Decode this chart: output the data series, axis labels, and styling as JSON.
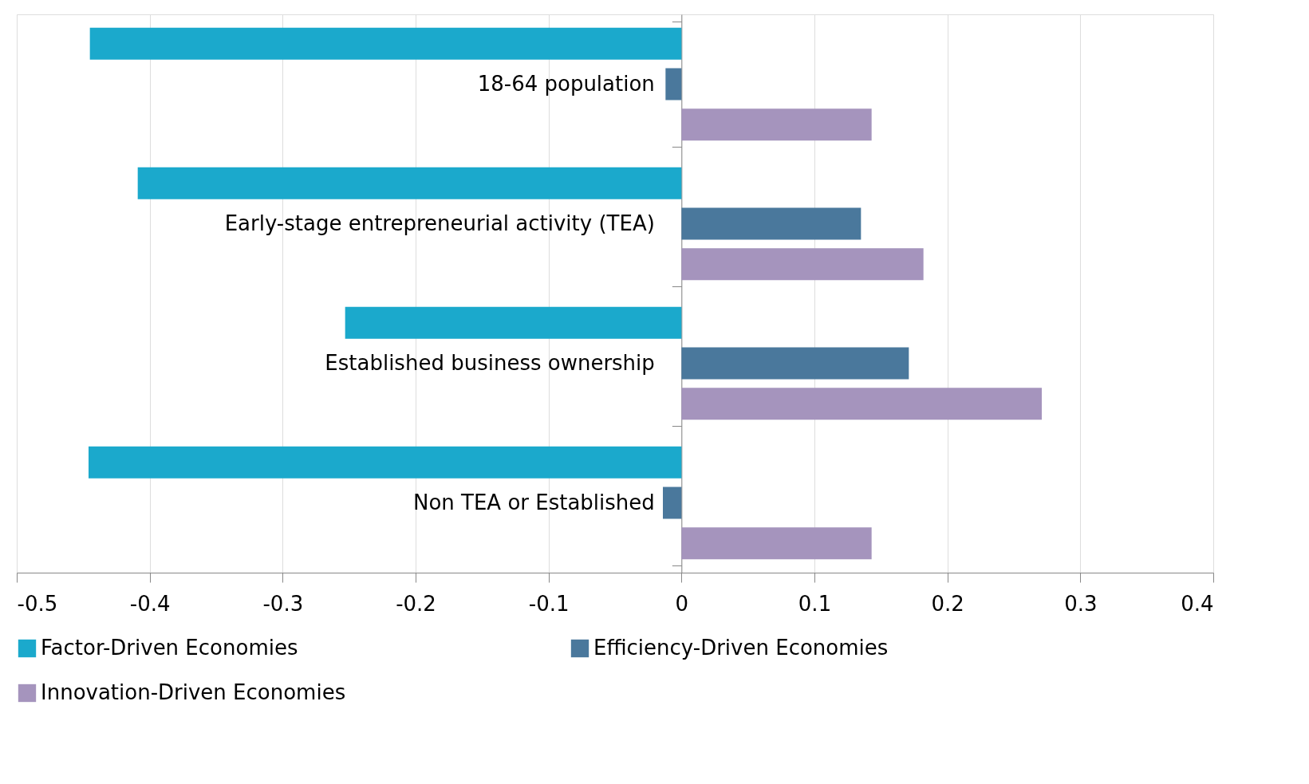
{
  "chart_data": {
    "type": "bar",
    "orientation": "horizontal",
    "categories": [
      "18-64 population",
      "Early-stage entrepreneurial activity (TEA)",
      "Established business ownership",
      "Non TEA or Established"
    ],
    "series": [
      {
        "name": "Factor-Driven Economies",
        "color": "#1ba9cc",
        "values": [
          -0.445,
          -0.409,
          -0.253,
          -0.446
        ]
      },
      {
        "name": "Efficiency-Driven Economies",
        "color": "#4a789c",
        "values": [
          -0.012,
          0.135,
          0.171,
          -0.014
        ]
      },
      {
        "name": "Innovation-Driven Economies",
        "color": "#a594bd",
        "values": [
          0.143,
          0.182,
          0.271,
          0.143
        ]
      }
    ],
    "xlim": [
      -0.5,
      0.4
    ],
    "xticks": [
      -0.5,
      -0.4,
      -0.3,
      -0.2,
      -0.1,
      0,
      0.1,
      0.2,
      0.3,
      0.4
    ],
    "grid": "x",
    "legend": "bottom"
  }
}
